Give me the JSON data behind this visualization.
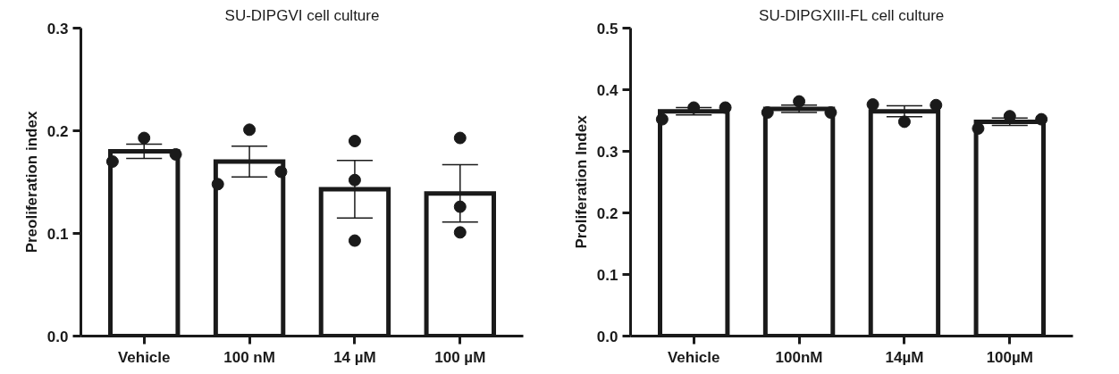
{
  "chart_data": [
    {
      "type": "bar",
      "title": "SU-DIPGVI cell culture",
      "ylabel": "Preoliferation index",
      "categories": [
        "Vehicle",
        "100 nM",
        "14 µM",
        "100 µM"
      ],
      "ylim": [
        0,
        0.3
      ],
      "yticks": [
        {
          "value": 0,
          "label": "0.0"
        },
        0.1,
        0.2,
        0.3
      ],
      "series": [
        {
          "color": "#ffffff",
          "values": [
            0.18,
            0.17,
            0.143,
            0.139
          ],
          "errors": [
            0.007,
            0.015,
            0.028,
            0.028
          ]
        },
        {
          "type": "scatter",
          "color": "#1a1a1a",
          "marker": "circle",
          "x": [
            "Vehicle",
            "Vehicle",
            "Vehicle",
            "100 nM",
            "100 nM",
            "100 nM",
            "14 µM",
            "14 µM",
            "14 µM",
            "100 µM",
            "100 µM",
            "100 µM"
          ],
          "values": [
            0.17,
            0.193,
            0.177,
            0.148,
            0.201,
            0.16,
            0.093,
            0.19,
            0.152,
            0.101,
            0.193,
            0.126
          ]
        }
      ]
    },
    {
      "type": "bar",
      "title": "SU-DIPGXIII-FL cell culture",
      "ylabel": "Proliferation Index",
      "categories": [
        "Vehicle",
        "100nM",
        "14µM",
        "100µM"
      ],
      "ylim": [
        0,
        0.5
      ],
      "yticks": [
        {
          "value": 0,
          "label": "0.0"
        },
        0.1,
        0.2,
        0.3,
        0.4,
        0.5
      ],
      "series": [
        {
          "color": "#ffffff",
          "values": [
            0.365,
            0.369,
            0.365,
            0.348
          ],
          "errors": [
            0.006,
            0.006,
            0.009,
            0.006
          ]
        },
        {
          "type": "scatter",
          "color": "#1a1a1a",
          "marker": "circle",
          "x": [
            "Vehicle",
            "Vehicle",
            "Vehicle",
            "100nM",
            "100nM",
            "100nM",
            "14µM",
            "14µM",
            "14µM",
            "100µM",
            "100µM",
            "100µM"
          ],
          "values": [
            0.352,
            0.371,
            0.371,
            0.363,
            0.381,
            0.363,
            0.376,
            0.348,
            0.375,
            0.337,
            0.357,
            0.352
          ]
        }
      ]
    }
  ]
}
